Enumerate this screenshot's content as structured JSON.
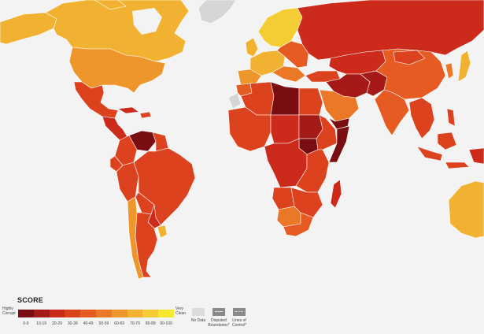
{
  "legend": {
    "title": "SCORE",
    "low_label": "Highly Corrupt",
    "high_label": "Very Clean",
    "bins": [
      {
        "label": "0-9",
        "color": "#7a0d12"
      },
      {
        "label": "10-19",
        "color": "#a51a16"
      },
      {
        "label": "20-29",
        "color": "#cc2a1b"
      },
      {
        "label": "30-39",
        "color": "#dd421f"
      },
      {
        "label": "40-49",
        "color": "#e55b22"
      },
      {
        "label": "50-59",
        "color": "#ea7826"
      },
      {
        "label": "60-69",
        "color": "#ee962b"
      },
      {
        "label": "70-79",
        "color": "#f1b232"
      },
      {
        "label": "80-89",
        "color": "#f3cd33"
      },
      {
        "label": "90-100",
        "color": "#f5e82e"
      }
    ],
    "no_data": {
      "label": "No Data",
      "color": "#dcdcdc"
    },
    "disputed": {
      "label": "Disputed Boundaries*",
      "color": "#8a8a8a"
    },
    "lines_of_control": {
      "label": "Lines of Control*",
      "color": "#8a8a8a"
    }
  },
  "map_colors": {
    "ocean": "#f3f3f4"
  },
  "regions": [
    {
      "name": "greenland",
      "bin": "no-data"
    },
    {
      "name": "alaska",
      "bin": "70-79"
    },
    {
      "name": "canada",
      "bin": "70-79"
    },
    {
      "name": "usa",
      "bin": "60-69"
    },
    {
      "name": "mexico",
      "bin": "30-39"
    },
    {
      "name": "central-america",
      "bin": "20-29"
    },
    {
      "name": "caribbean",
      "bin": "30-39"
    },
    {
      "name": "venezuela",
      "bin": "10-19"
    },
    {
      "name": "colombia",
      "bin": "30-39"
    },
    {
      "name": "brazil",
      "bin": "30-39"
    },
    {
      "name": "peru",
      "bin": "30-39"
    },
    {
      "name": "bolivia",
      "bin": "30-39"
    },
    {
      "name": "argentina",
      "bin": "30-39"
    },
    {
      "name": "chile",
      "bin": "60-69"
    },
    {
      "name": "uruguay",
      "bin": "70-79"
    },
    {
      "name": "scandinavia",
      "bin": "80-89"
    },
    {
      "name": "western-europe",
      "bin": "70-79"
    },
    {
      "name": "eastern-europe",
      "bin": "40-49"
    },
    {
      "name": "russia",
      "bin": "20-29"
    },
    {
      "name": "middle-east",
      "bin": "30-39"
    },
    {
      "name": "saudi-arabia",
      "bin": "50-59"
    },
    {
      "name": "north-africa",
      "bin": "30-39"
    },
    {
      "name": "libya",
      "bin": "10-19"
    },
    {
      "name": "west-africa",
      "bin": "30-39"
    },
    {
      "name": "sudan",
      "bin": "10-19"
    },
    {
      "name": "south-sudan",
      "bin": "10-19"
    },
    {
      "name": "central-africa",
      "bin": "20-29"
    },
    {
      "name": "east-africa",
      "bin": "30-39"
    },
    {
      "name": "southern-africa",
      "bin": "40-49"
    },
    {
      "name": "madagascar",
      "bin": "20-29"
    },
    {
      "name": "central-asia",
      "bin": "20-29"
    },
    {
      "name": "china",
      "bin": "40-49"
    },
    {
      "name": "india",
      "bin": "30-39"
    },
    {
      "name": "southeast-asia",
      "bin": "30-39"
    },
    {
      "name": "indonesia",
      "bin": "30-39"
    },
    {
      "name": "australia",
      "bin": "70-79"
    },
    {
      "name": "japan",
      "bin": "70-79"
    },
    {
      "name": "korea",
      "bin": "50-59"
    }
  ]
}
